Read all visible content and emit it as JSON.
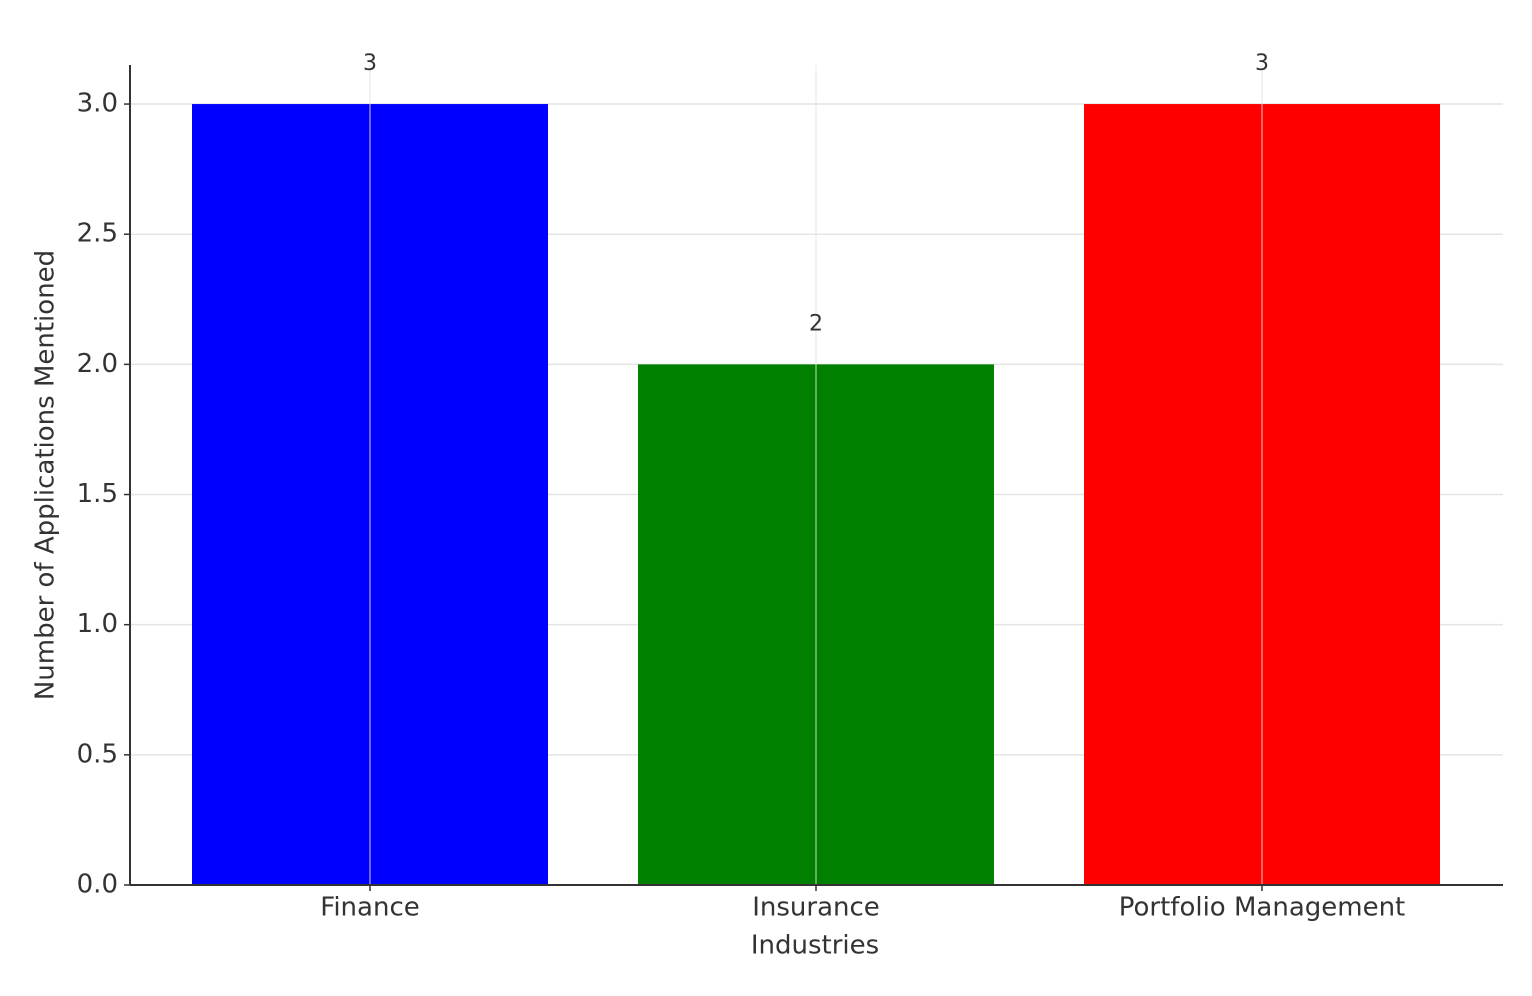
{
  "chart_data": {
    "type": "bar",
    "x_label": "Industries",
    "y_label": "Number of Applications Mentioned",
    "categories": [
      "Finance",
      "Insurance",
      "Portfolio Management"
    ],
    "values": [
      3,
      2,
      3
    ],
    "colors": [
      "#0000ff",
      "#007f00",
      "#ff0000"
    ],
    "ylim": [
      0,
      3.15
    ],
    "yticks": [
      {
        "value": 0,
        "label": "0.0"
      },
      0.5,
      {
        "value": 1,
        "label": "1.0"
      },
      1.5,
      {
        "value": 2,
        "label": "2.0"
      },
      2.5,
      {
        "value": 3,
        "label": "3.0"
      }
    ],
    "grid": true
  }
}
